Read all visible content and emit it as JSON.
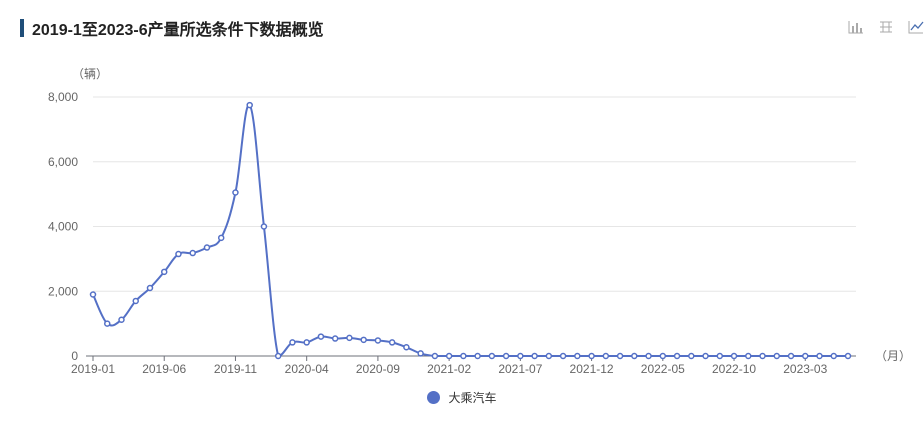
{
  "header": {
    "title": "2019-1至2023-6产量所选条件下数据概览"
  },
  "toolbar": {
    "tools": [
      {
        "icon": "bar-chart-icon"
      },
      {
        "icon": "data-view-icon"
      },
      {
        "icon": "line-chart-icon"
      }
    ]
  },
  "colors": {
    "series": "#5470c6",
    "accent": "#1f4e79"
  },
  "chart_data": {
    "type": "line",
    "title": "2019-1至2023-6产量所选条件下数据概览",
    "ylabel": "（辆）",
    "xlabel": "（月）",
    "ylim": [
      0,
      8000
    ],
    "yticks": [
      0,
      2000,
      4000,
      6000,
      8000
    ],
    "ytick_labels": [
      "0",
      "2,000",
      "4,000",
      "6,000",
      "8,000"
    ],
    "xtick_labels": [
      "2019-01",
      "2019-06",
      "2019-11",
      "2020-04",
      "2020-09",
      "2021-02",
      "2021-07",
      "2021-12",
      "2022-05",
      "2022-10",
      "2023-03"
    ],
    "grid": true,
    "legend": "bottom",
    "x": [
      "2019-01",
      "2019-02",
      "2019-03",
      "2019-04",
      "2019-05",
      "2019-06",
      "2019-07",
      "2019-08",
      "2019-09",
      "2019-10",
      "2019-11",
      "2019-12",
      "2020-01",
      "2020-02",
      "2020-03",
      "2020-04",
      "2020-05",
      "2020-06",
      "2020-07",
      "2020-08",
      "2020-09",
      "2020-10",
      "2020-11",
      "2020-12",
      "2021-01",
      "2021-02",
      "2021-03",
      "2021-04",
      "2021-05",
      "2021-06",
      "2021-07",
      "2021-08",
      "2021-09",
      "2021-10",
      "2021-11",
      "2021-12",
      "2022-01",
      "2022-02",
      "2022-03",
      "2022-04",
      "2022-05",
      "2022-06",
      "2022-07",
      "2022-08",
      "2022-09",
      "2022-10",
      "2022-11",
      "2022-12",
      "2023-01",
      "2023-02",
      "2023-03",
      "2023-04",
      "2023-05",
      "2023-06"
    ],
    "series": [
      {
        "name": "大乘汽车",
        "values": [
          1900,
          1000,
          1120,
          1700,
          2100,
          2600,
          3150,
          3180,
          3350,
          3650,
          5050,
          7750,
          4000,
          0,
          420,
          420,
          600,
          540,
          560,
          500,
          480,
          420,
          270,
          80,
          0,
          0,
          0,
          0,
          0,
          0,
          0,
          0,
          0,
          0,
          0,
          0,
          0,
          0,
          0,
          0,
          0,
          0,
          0,
          0,
          0,
          0,
          0,
          0,
          0,
          0,
          0,
          0,
          0,
          0
        ]
      }
    ]
  }
}
